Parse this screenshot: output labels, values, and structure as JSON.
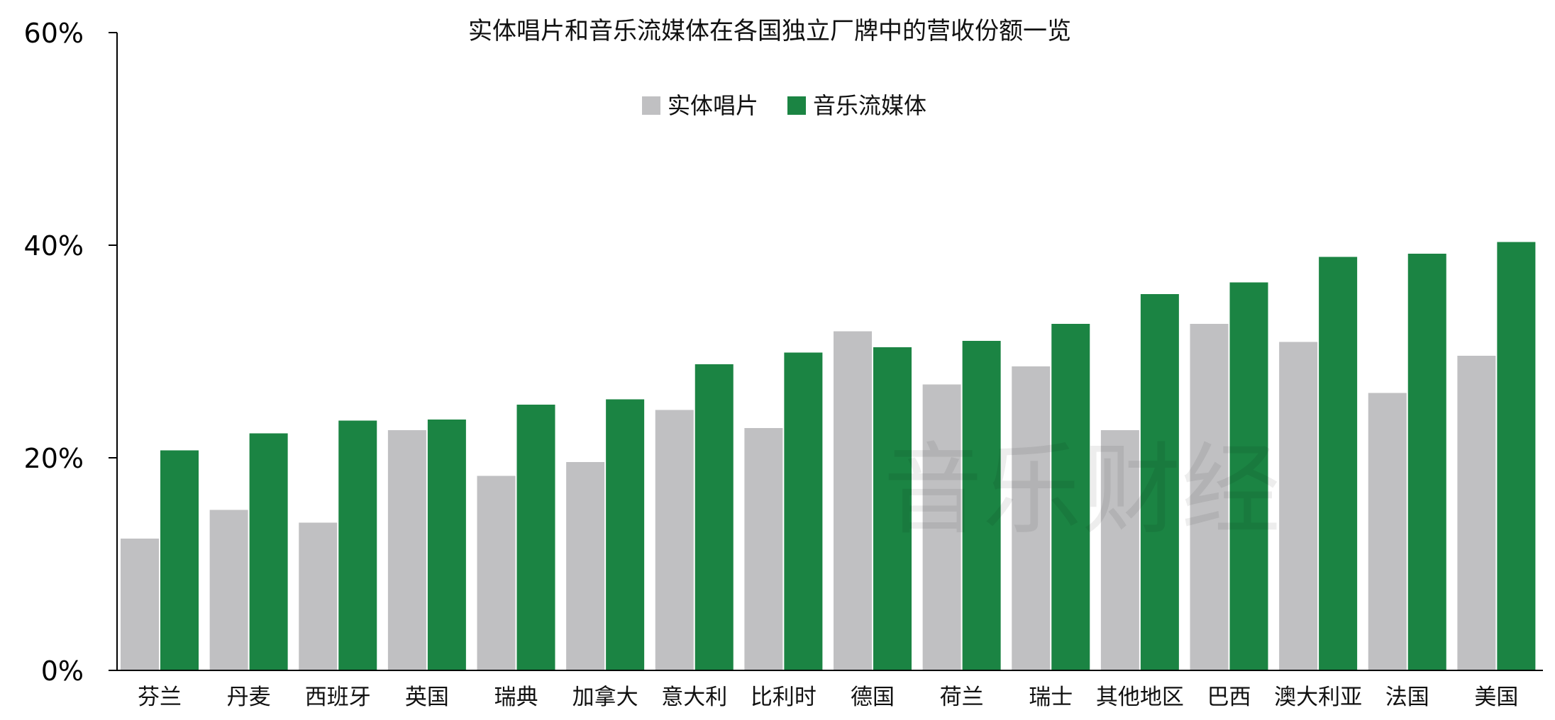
{
  "chart_data": {
    "type": "bar",
    "title": "实体唱片和音乐流媒体在各国独立厂牌中的营收份额一览",
    "xlabel": "",
    "ylabel": "",
    "ylim": [
      0,
      60
    ],
    "y_ticks": [
      0,
      20,
      40,
      60
    ],
    "y_tick_labels": [
      "0%",
      "20%",
      "40%",
      "60%"
    ],
    "grid": false,
    "legend_position": "top-center",
    "categories": [
      "芬兰",
      "丹麦",
      "西班牙",
      "英国",
      "瑞典",
      "加拿大",
      "意大利",
      "比利时",
      "德国",
      "荷兰",
      "瑞士",
      "其他地区",
      "巴西",
      "澳大利亚",
      "法国",
      "美国"
    ],
    "series": [
      {
        "name": "实体唱片",
        "color": "#c0c0c2",
        "values": [
          12.4,
          15.1,
          13.9,
          22.6,
          18.3,
          19.6,
          24.5,
          22.8,
          31.9,
          26.9,
          28.6,
          22.6,
          32.6,
          30.9,
          26.1,
          29.6
        ]
      },
      {
        "name": "音乐流媒体",
        "color": "#1b8443",
        "values": [
          20.7,
          22.3,
          23.5,
          23.6,
          25.0,
          25.5,
          28.8,
          29.9,
          30.4,
          31.0,
          32.6,
          35.4,
          36.5,
          38.9,
          39.2,
          40.3
        ]
      }
    ],
    "watermark": "音乐财经"
  }
}
